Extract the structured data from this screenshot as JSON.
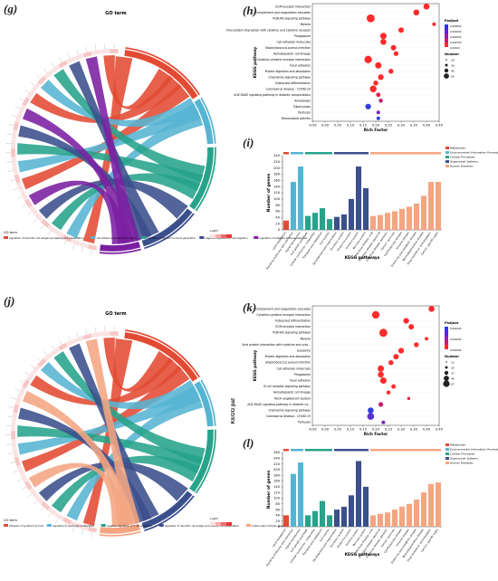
{
  "panels": {
    "g": {
      "label": "(g)",
      "title": "GO term",
      "legend_title": "GO term",
      "legend_items": [
        "regulation of dendritic cell antigen processing and presentation",
        "cell adhesion mediated by integrin",
        "regulation of thyroid hormone generation",
        "negative regulation of cell migration",
        "regulation of adaptive immune response"
      ],
      "legend_colors": [
        "#e24a33",
        "#56b4d3",
        "#26a38a",
        "#3b4f8c",
        "#7b1fa2"
      ],
      "scale_title": "LogFC"
    },
    "j": {
      "label": "(j)",
      "title": "GO term",
      "side_title": "KEGG pat",
      "legend_title": "GO term",
      "legend_items": [
        "adhesion of symbiont to host",
        "regulation of leukocyte proliferation",
        "negative regulation of T cell activation",
        "regulation of dendritic cell antigen processing and presentation",
        "protein-lipid complex assembly"
      ],
      "legend_colors": [
        "#e24a33",
        "#56b4d3",
        "#26a38a",
        "#3b4f8c",
        "#f4a582"
      ],
      "scale_title": "LogFC"
    },
    "h": {
      "label": "(h)"
    },
    "i": {
      "label": "(i)"
    },
    "k": {
      "label": "(k)"
    },
    "l": {
      "label": "(l)"
    }
  },
  "chart_data": [
    {
      "id": "h",
      "type": "scatter",
      "xlabel": "Rich Factor",
      "ylabel": "KEGG pathway",
      "xlim": [
        -0.05,
        0.45
      ],
      "xticks": [
        "-0.05",
        "0.00",
        "0.05",
        "0.10",
        "0.15",
        "0.20",
        "0.25",
        "0.30",
        "0.35",
        "0.40",
        "0.45"
      ],
      "categories": [
        "ECM-receptor interaction",
        "Complement and coagulation cascades",
        "PI3K-Akt signaling pathway",
        "Malaria",
        "Viral protein interaction with cytokine and cytokine receptor",
        "Phagosome",
        "Cell adhesion molecules",
        "Staphylococcus aureus infection",
        "Hematopoietic cell lineage",
        "Cytokine-cytokine receptor interaction",
        "Focal adhesion",
        "Protein digestion and absorption",
        "Chemokine signaling pathway",
        "Osteoclast differentiation",
        "Coronavirus disease - COVID-19",
        "AGE-RAGE signaling pathway in diabetic complications",
        "Amoebiasis",
        "Tuberculosis",
        "Pertussis",
        "Rheumatoid arthritis"
      ],
      "x": [
        0.4,
        0.36,
        0.18,
        0.43,
        0.3,
        0.23,
        0.23,
        0.27,
        0.28,
        0.17,
        0.21,
        0.26,
        0.22,
        0.2,
        0.19,
        0.21,
        0.22,
        0.17,
        0.21,
        0.21
      ],
      "sizes": [
        22,
        22,
        40,
        8,
        18,
        25,
        22,
        18,
        14,
        35,
        25,
        15,
        20,
        15,
        28,
        12,
        10,
        20,
        8,
        8
      ],
      "colors": [
        "#ff2a2a",
        "#ff2a2a",
        "#ff2a2a",
        "#ff2a2a",
        "#ff2a2a",
        "#ff2a2a",
        "#ff2a2a",
        "#ff2a2a",
        "#ff2a2a",
        "#ff2a2a",
        "#ff2a2a",
        "#ff2a2a",
        "#ff2a2a",
        "#ff2a2a",
        "#ff2a2a",
        "#e0204a",
        "#c02070",
        "#3040e0",
        "#7a20c0",
        "#3040e0"
      ],
      "legend": {
        "color_title": "Padjust",
        "color_ticks": [
          "0.000000",
          "0.000250",
          "0.000500",
          "0.000750",
          "0.00100"
        ],
        "size_title": "Number",
        "size_ticks": [
          "20",
          "30",
          "40",
          "50"
        ]
      }
    },
    {
      "id": "k",
      "type": "scatter",
      "xlabel": "Rich Factor",
      "ylabel": "KEGG pathway",
      "xlim": [
        -0.05,
        0.45
      ],
      "xticks": [
        "-0.05",
        "0.00",
        "0.05",
        "0.10",
        "0.15",
        "0.20",
        "0.25",
        "0.30",
        "0.35",
        "0.40",
        "0.45"
      ],
      "categories": [
        "Complement and coagulation cascades",
        "Cytokine-cytokine receptor interaction",
        "Osteoclast differentiation",
        "ECM-receptor interaction",
        "PI3K-Akt signaling pathway",
        "Malaria",
        "Viral protein interaction with cytokine and cyto...",
        "Lysosome",
        "Protein digestion and absorption",
        "Staphylococcus aureus infection",
        "Cell adhesion molecules",
        "Phagosome",
        "Focal adhesion",
        "B cell receptor signaling pathway",
        "Hematopoietic cell lineage",
        "Renin-angiotensin system",
        "AGE-RAGE signaling pathway in diabetic co...",
        "Chemokine signaling pathway",
        "Coronavirus disease - COVID-19",
        "Pertussis"
      ],
      "x": [
        0.42,
        0.2,
        0.32,
        0.34,
        0.23,
        0.4,
        0.36,
        0.3,
        0.28,
        0.26,
        0.22,
        0.22,
        0.23,
        0.27,
        0.25,
        0.33,
        0.22,
        0.18,
        0.18,
        0.23
      ],
      "sizes": [
        22,
        35,
        20,
        18,
        40,
        8,
        15,
        20,
        18,
        15,
        25,
        22,
        25,
        12,
        10,
        6,
        14,
        22,
        30,
        8
      ],
      "colors": [
        "#ff2a2a",
        "#ff2a2a",
        "#ff2a2a",
        "#ff2a2a",
        "#ff2a2a",
        "#ff2a2a",
        "#ff2a2a",
        "#ff2a2a",
        "#ff2a2a",
        "#ff2a2a",
        "#ff2a2a",
        "#ff2a2a",
        "#ff2a2a",
        "#ff2a2a",
        "#ff2a2a",
        "#e0204a",
        "#c02070",
        "#3040e0",
        "#5a30d0",
        "#7a20c0"
      ],
      "legend": {
        "color_title": "Padjust",
        "color_ticks": [
          "0.000100",
          "0.000200",
          "0.000300"
        ],
        "size_title": "Number",
        "size_ticks": [
          "12",
          "25",
          "37",
          "49",
          "67"
        ]
      }
    },
    {
      "id": "i",
      "type": "bar",
      "xlabel": "KEGG pathways",
      "ylabel": "Number of genes",
      "ylim": [
        0,
        240
      ],
      "yticks": [
        "0",
        "20",
        "40",
        "60",
        "80",
        "100",
        "120",
        "140",
        "160",
        "180",
        "200",
        "220",
        "240"
      ],
      "categories": [
        "Lipid metabolism",
        "Signaling molecules and interaction",
        "Signal transduction",
        "Cell growth and death",
        "Cellular community - eukaryotes",
        "Transport and catabolism",
        "Cell motility",
        "Development and regeneration",
        "Excretory system",
        "Endocrine system",
        "Immune system",
        "Nervous system",
        "Infectious disease: viral",
        "Infectious disease: bacterial",
        "Infectious disease: parasitic",
        "Cancer: overview",
        "Cardiovascular disease",
        "Immune disease",
        "Endocrine and metabolic disease",
        "Neurodegenerative disease",
        "Drug resistance: antineoplastic",
        "Cancer: specific types"
      ],
      "values": [
        30,
        155,
        205,
        45,
        55,
        70,
        35,
        42,
        50,
        100,
        205,
        135,
        45,
        48,
        55,
        60,
        68,
        75,
        85,
        110,
        155,
        155
      ],
      "colors": [
        "#e24a33",
        "#56b4d3",
        "#56b4d3",
        "#26a38a",
        "#26a38a",
        "#26a38a",
        "#26a38a",
        "#3b4f8c",
        "#3b4f8c",
        "#3b4f8c",
        "#3b4f8c",
        "#3b4f8c",
        "#f4a582",
        "#f4a582",
        "#f4a582",
        "#f4a582",
        "#f4a582",
        "#f4a582",
        "#f4a582",
        "#f4a582",
        "#f4a582",
        "#f4a582"
      ],
      "legend": [
        "Metabolism",
        "Environmental Information Processing",
        "Cellular Processes",
        "Organismal Systems",
        "Human Diseases"
      ],
      "legend_colors": [
        "#e24a33",
        "#56b4d3",
        "#26a38a",
        "#3b4f8c",
        "#f4a582"
      ]
    },
    {
      "id": "l",
      "type": "bar",
      "xlabel": "KEGG pathways",
      "ylabel": "Number of genes",
      "ylim": [
        0,
        260
      ],
      "yticks": [
        "0",
        "20",
        "40",
        "60",
        "80",
        "100",
        "120",
        "140",
        "160",
        "180",
        "200",
        "220",
        "240",
        "260"
      ],
      "categories": [
        "Lipid metabolism",
        "Signaling molecules and interaction",
        "Signal transduction",
        "Cell growth and death",
        "Cellular community - eukaryotes",
        "Transport and catabolism",
        "Cell motility",
        "Development and regeneration",
        "Excretory system",
        "Endocrine system",
        "Immune system",
        "Nervous system",
        "Infectious disease: viral",
        "Infectious disease: bacterial",
        "Infectious disease: parasitic",
        "Cancer: overview",
        "Cardiovascular disease",
        "Immune disease",
        "Endocrine and metabolic disease",
        "Neurodegenerative disease",
        "Drug resistance: antineoplastic",
        "Cancer: specific types"
      ],
      "values": [
        40,
        185,
        225,
        40,
        55,
        90,
        40,
        60,
        70,
        110,
        230,
        140,
        40,
        45,
        50,
        60,
        70,
        80,
        95,
        120,
        150,
        155
      ],
      "colors": [
        "#e24a33",
        "#56b4d3",
        "#56b4d3",
        "#26a38a",
        "#26a38a",
        "#26a38a",
        "#26a38a",
        "#3b4f8c",
        "#3b4f8c",
        "#3b4f8c",
        "#3b4f8c",
        "#3b4f8c",
        "#f4a582",
        "#f4a582",
        "#f4a582",
        "#f4a582",
        "#f4a582",
        "#f4a582",
        "#f4a582",
        "#f4a582",
        "#f4a582",
        "#f4a582"
      ],
      "legend": [
        "Metabolism",
        "Environmental Information Processing",
        "Cellular Processes",
        "Organismal Systems",
        "Human Diseases"
      ],
      "legend_colors": [
        "#e24a33",
        "#56b4d3",
        "#26a38a",
        "#3b4f8c",
        "#f4a582"
      ]
    }
  ]
}
